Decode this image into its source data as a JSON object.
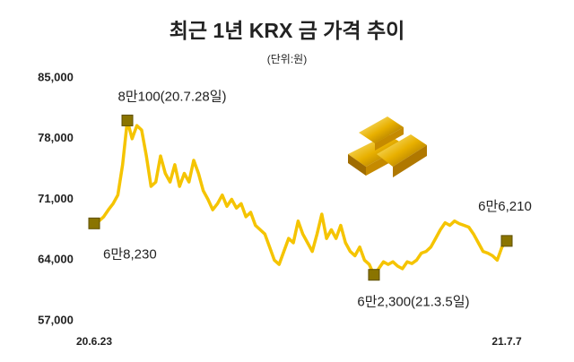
{
  "chart_data": {
    "type": "line",
    "title": "최근 1년  KRX 금 가격 추이",
    "subtitle": "(단위:원)",
    "categories": [
      "20.6.23",
      null,
      null,
      null,
      null,
      null,
      null,
      null,
      null,
      null,
      null,
      null,
      null,
      null,
      null,
      null,
      null,
      null,
      null,
      null,
      null,
      null,
      null,
      null,
      null,
      null,
      null,
      null,
      null,
      null,
      null,
      null,
      null,
      null,
      null,
      null,
      null,
      null,
      null,
      null,
      null,
      null,
      null,
      null,
      null,
      null,
      null,
      null,
      null,
      null,
      null,
      null,
      null,
      null,
      null,
      null,
      null,
      null,
      null,
      null,
      null,
      null,
      null,
      null,
      null,
      null,
      null,
      null,
      null,
      null,
      null,
      null,
      null,
      null,
      null,
      null,
      null,
      null,
      null,
      null,
      null,
      null,
      null,
      null,
      null,
      null,
      null,
      "21.7.7"
    ],
    "values": [
      68230,
      68500,
      69000,
      69800,
      70500,
      71500,
      75000,
      80100,
      78000,
      79500,
      79000,
      76000,
      72500,
      73000,
      76000,
      74000,
      73000,
      75000,
      72500,
      74000,
      73000,
      75500,
      74000,
      72000,
      71000,
      69800,
      70500,
      71500,
      70200,
      71000,
      70000,
      70500,
      69000,
      69500,
      68000,
      67500,
      67000,
      65500,
      64000,
      63500,
      65000,
      66500,
      66000,
      68500,
      67000,
      66000,
      65000,
      67000,
      69300,
      66500,
      67500,
      66500,
      68000,
      66000,
      65000,
      64500,
      65500,
      64000,
      63500,
      62300,
      63000,
      63800,
      63500,
      63800,
      63300,
      63000,
      63800,
      63600,
      64000,
      64800,
      65000,
      65500,
      66500,
      67500,
      68300,
      68000,
      68500,
      68200,
      68000,
      67800,
      67000,
      66000,
      65000,
      64800,
      64500,
      64000,
      65500,
      66210
    ],
    "value_labels": [
      "6만8,230",
      null,
      null,
      null,
      null,
      null,
      null,
      "8만100(20.7.28일)",
      null,
      null,
      null,
      null,
      null,
      null,
      null,
      null,
      null,
      null,
      null,
      null,
      null,
      null,
      null,
      null,
      null,
      null,
      null,
      null,
      null,
      null,
      null,
      null,
      null,
      null,
      null,
      null,
      null,
      null,
      null,
      null,
      null,
      null,
      null,
      null,
      null,
      null,
      null,
      null,
      null,
      null,
      null,
      null,
      null,
      null,
      null,
      null,
      null,
      null,
      null,
      "6만2,300(21.3.5일)",
      null,
      null,
      null,
      null,
      null,
      null,
      null,
      null,
      null,
      null,
      null,
      null,
      null,
      null,
      null,
      null,
      null,
      null,
      null,
      null,
      null,
      null,
      null,
      null,
      null,
      null,
      null,
      "6만6,210"
    ],
    "color": "#f5c400",
    "marker_color": "#8a7400",
    "ylim": [
      57000,
      85000
    ],
    "yticks": [
      {
        "value": 57000,
        "label": "57,000"
      },
      {
        "value": 64000,
        "label": "64,000"
      },
      {
        "value": 71000,
        "label": "71,000"
      },
      {
        "value": 78000,
        "label": "78,000"
      },
      {
        "value": 85000,
        "label": "85,000"
      }
    ],
    "grid": false
  }
}
